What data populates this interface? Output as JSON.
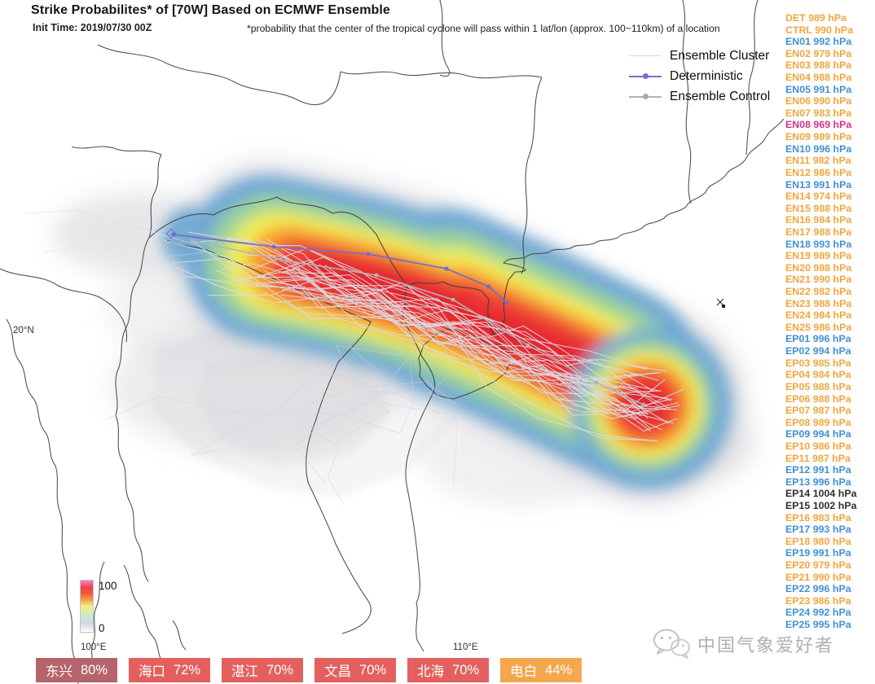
{
  "title": "Strike Probabilites* of [70W] Based on ECMWF Ensemble",
  "init_time": "Init Time: 2019/07/30 00Z",
  "footnote": "*probability that the center of the tropical cyclone will pass within 1 lat/lon (approx. 100~110km) of a location",
  "legend": {
    "items": [
      {
        "label": "Ensemble Cluster"
      },
      {
        "label": "Deterministic"
      },
      {
        "label": "Ensemble Control"
      }
    ]
  },
  "members": [
    {
      "label": "DET 989 hPa",
      "color": "orange"
    },
    {
      "label": "CTRL 990 hPa",
      "color": "orange"
    },
    {
      "label": "EN01 992 hPa",
      "color": "blue"
    },
    {
      "label": "EN02 979 hPa",
      "color": "orange"
    },
    {
      "label": "EN03 988 hPa",
      "color": "orange"
    },
    {
      "label": "EN04 988 hPa",
      "color": "orange"
    },
    {
      "label": "EN05 991 hPa",
      "color": "blue"
    },
    {
      "label": "EN06 990 hPa",
      "color": "orange"
    },
    {
      "label": "EN07 983 hPa",
      "color": "orange"
    },
    {
      "label": "EN08 969 hPa",
      "color": "pink"
    },
    {
      "label": "EN09 989 hPa",
      "color": "orange"
    },
    {
      "label": "EN10 996 hPa",
      "color": "blue"
    },
    {
      "label": "EN11 982 hPa",
      "color": "orange"
    },
    {
      "label": "EN12 986 hPa",
      "color": "orange"
    },
    {
      "label": "EN13 991 hPa",
      "color": "blue"
    },
    {
      "label": "EN14 974 hPa",
      "color": "orange"
    },
    {
      "label": "EN15 988 hPa",
      "color": "orange"
    },
    {
      "label": "EN16 984 hPa",
      "color": "orange"
    },
    {
      "label": "EN17 988 hPa",
      "color": "orange"
    },
    {
      "label": "EN18 993 hPa",
      "color": "blue"
    },
    {
      "label": "EN19 989 hPa",
      "color": "orange"
    },
    {
      "label": "EN20 988 hPa",
      "color": "orange"
    },
    {
      "label": "EN21 990 hPa",
      "color": "orange"
    },
    {
      "label": "EN22 982 hPa",
      "color": "orange"
    },
    {
      "label": "EN23 988 hPa",
      "color": "orange"
    },
    {
      "label": "EN24 984 hPa",
      "color": "orange"
    },
    {
      "label": "EN25 986 hPa",
      "color": "orange"
    },
    {
      "label": "EP01 996 hPa",
      "color": "blue"
    },
    {
      "label": "EP02 994 hPa",
      "color": "blue"
    },
    {
      "label": "EP03 985 hPa",
      "color": "orange"
    },
    {
      "label": "EP04 984 hPa",
      "color": "orange"
    },
    {
      "label": "EP05 988 hPa",
      "color": "orange"
    },
    {
      "label": "EP06 988 hPa",
      "color": "orange"
    },
    {
      "label": "EP07 987 hPa",
      "color": "orange"
    },
    {
      "label": "EP08 989 hPa",
      "color": "orange"
    },
    {
      "label": "EP09 994 hPa",
      "color": "blue"
    },
    {
      "label": "EP10 986 hPa",
      "color": "orange"
    },
    {
      "label": "EP11 987 hPa",
      "color": "orange"
    },
    {
      "label": "EP12 991 hPa",
      "color": "blue"
    },
    {
      "label": "EP13 996 hPa",
      "color": "blue"
    },
    {
      "label": "EP14 1004 hPa",
      "color": "black"
    },
    {
      "label": "EP15 1002 hPa",
      "color": "black"
    },
    {
      "label": "EP16 983 hPa",
      "color": "orange"
    },
    {
      "label": "EP17 993 hPa",
      "color": "blue"
    },
    {
      "label": "EP18 980 hPa",
      "color": "orange"
    },
    {
      "label": "EP19 991 hPa",
      "color": "blue"
    },
    {
      "label": "EP20 979 hPa",
      "color": "orange"
    },
    {
      "label": "EP21 990 hPa",
      "color": "orange"
    },
    {
      "label": "EP22 996 hPa",
      "color": "blue"
    },
    {
      "label": "EP23 986 hPa",
      "color": "orange"
    },
    {
      "label": "EP24 992 hPa",
      "color": "blue"
    },
    {
      "label": "EP25 995 hPa",
      "color": "blue"
    }
  ],
  "colorbar": {
    "max": "100",
    "min": "0"
  },
  "map_labels": {
    "lat": "20°N",
    "lon_left": "100°E",
    "lon_right": "110°E"
  },
  "city_probabilities": [
    {
      "city": "东兴",
      "value": "80%",
      "color": "dark_red"
    },
    {
      "city": "海口",
      "value": "72%",
      "color": "red"
    },
    {
      "city": "湛江",
      "value": "70%",
      "color": "red"
    },
    {
      "city": "文昌",
      "value": "70%",
      "color": "red"
    },
    {
      "city": "北海",
      "value": "70%",
      "color": "red"
    },
    {
      "city": "电白",
      "value": "44%",
      "color": "orange"
    }
  ],
  "watermark": {
    "text": "中国气象爱好者"
  },
  "colors": {
    "member_orange": "#f2a63e",
    "member_blue": "#4191d3",
    "member_pink": "#d23387",
    "member_black": "#2f2f2f",
    "badge_dark_red": "#b4646a",
    "badge_red": "#e4605e",
    "badge_orange": "#f5a74e",
    "deterministic": "#7a6bc7",
    "ensemble_control": "#b3b3b8",
    "ensemble_cluster": "#dcdce2"
  }
}
